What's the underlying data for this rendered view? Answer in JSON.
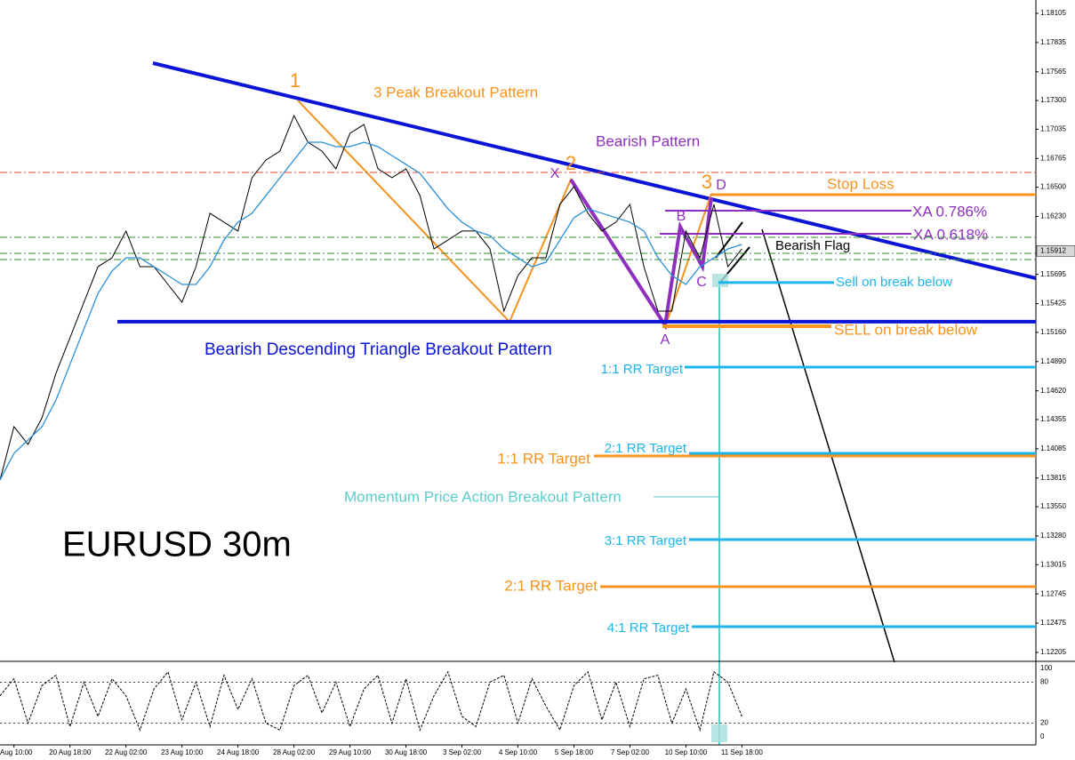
{
  "chart_data": [
    {
      "type": "line",
      "title": "EURUSD 30m",
      "ylim": [
        1.12139,
        1.18228
      ],
      "yticks": [
        1.18105,
        1.17835,
        1.17565,
        {
          "value": 1.173,
          "label": "1.17300"
        },
        1.17035,
        1.16765,
        {
          "value": 1.165,
          "label": "1.16500"
        },
        {
          "value": 1.1623,
          "label": "1.16230"
        },
        1.15695,
        1.15425,
        {
          "value": 1.1516,
          "label": "1.15160"
        },
        {
          "value": 1.1489,
          "label": "1.14890"
        },
        {
          "value": 1.1462,
          "label": "1.14620"
        },
        1.14355,
        1.14085,
        1.13815,
        {
          "value": 1.1355,
          "label": "1.13550"
        },
        {
          "value": 1.1328,
          "label": "1.13280"
        },
        1.13015,
        1.12745,
        1.12475,
        1.12205
      ],
      "xlim": [
        0,
        74
      ],
      "xticks": [
        {
          "value": 1,
          "label": "Aug 10:00"
        },
        {
          "value": 5,
          "label": "20 Aug 18:00"
        },
        {
          "value": 9,
          "label": "22 Aug 02:00"
        },
        {
          "value": 13,
          "label": "23 Aug 10:00"
        },
        {
          "value": 17,
          "label": "24 Aug 18:00"
        },
        {
          "value": 21,
          "label": "28 Aug 02:00"
        },
        {
          "value": 25,
          "label": "29 Aug 10:00"
        },
        {
          "value": 29,
          "label": "30 Aug 18:00"
        },
        {
          "value": 33,
          "label": "3 Sep 02:00"
        },
        {
          "value": 37,
          "label": "4 Sep 10:00"
        },
        {
          "value": 41,
          "label": "5 Sep 18:00"
        },
        {
          "value": 45,
          "label": "7 Sep 02:00"
        },
        {
          "value": 49,
          "label": "10 Sep 10:00"
        },
        {
          "value": 53,
          "label": "11 Sep 18:00"
        }
      ],
      "current_price": 1.15912,
      "series": [
        {
          "color": "#000000",
          "values": [
            1.13797,
            1.14289,
            1.14125,
            1.14371,
            1.14782,
            1.1511,
            1.15438,
            1.15766,
            1.15848,
            1.16095,
            1.15766,
            1.15766,
            1.15602,
            1.15438,
            1.15766,
            1.16259,
            1.16177,
            1.16095,
            1.16587,
            1.16751,
            1.16833,
            1.17161,
            1.16915,
            1.16833,
            1.16669,
            1.16997,
            1.17079,
            1.16669,
            1.16587,
            1.16669,
            1.16423,
            1.1593,
            1.16012,
            1.16095,
            1.16095,
            1.1593,
            1.15356,
            1.15684,
            1.15848,
            1.15848,
            1.16341,
            1.16505,
            1.16259,
            1.16095,
            1.16177,
            1.16341,
            1.15766,
            1.15356,
            1.15356,
            1.16095,
            1.15848,
            1.16341,
            1.15766,
            1.1593
          ]
        },
        {
          "color": "#2a8fd8",
          "values": [
            1.13797,
            1.14043,
            1.14166,
            1.14289,
            1.14535,
            1.14864,
            1.15192,
            1.1552,
            1.15725,
            1.15848,
            1.15848,
            1.15766,
            1.15684,
            1.15602,
            1.15602,
            1.15766,
            1.16012,
            1.16177,
            1.16259,
            1.16423,
            1.16587,
            1.16751,
            1.16915,
            1.16915,
            1.16874,
            1.16874,
            1.16915,
            1.16874,
            1.16792,
            1.1671,
            1.16628,
            1.16464,
            1.163,
            1.16177,
            1.16095,
            1.16053,
            1.1593,
            1.15848,
            1.15766,
            1.15807,
            1.16012,
            1.16218,
            1.163,
            1.16259,
            1.16218,
            1.16177,
            1.16095,
            1.15848,
            1.15684,
            1.15602,
            1.15766,
            1.15848,
            1.1593,
            1.15971
          ]
        }
      ],
      "levels": [
        {
          "label": "Stop Loss",
          "value": 1.16431,
          "color": "#f7931e"
        },
        {
          "label": "XA 0.786%",
          "value": 1.16283,
          "color": "#8e2fc0"
        },
        {
          "label": "XA 0.618%",
          "value": 1.1607,
          "color": "#8e2fc0"
        },
        {
          "label": "Sell on break below",
          "value": 1.15619,
          "color": "#1fb5ea"
        },
        {
          "label": "SELL on break below",
          "value": 1.15216,
          "color": "#f7931e"
        },
        {
          "label": "1:1 RR Target",
          "value": 1.14839,
          "color": "#1fb5ea"
        },
        {
          "label": "2:1 RR Target",
          "value": 1.14043,
          "color": "#1fb5ea"
        },
        {
          "label": "1:1 RR Target",
          "value": 1.14018,
          "color": "#f7931e"
        },
        {
          "label": "3:1 RR Target",
          "value": 1.13247,
          "color": "#1fb5ea"
        },
        {
          "label": "2:1 RR Target",
          "value": 1.12812,
          "color": "#f7931e"
        },
        {
          "label": "4:1 RR Target",
          "value": 1.12443,
          "color": "#1fb5ea"
        },
        {
          "value": 1.16636,
          "color": "#e0442a"
        },
        {
          "value": 1.16037,
          "color": "#2e8b2e"
        },
        {
          "value": 1.15889,
          "color": "#2e8b2e"
        },
        {
          "value": 1.15832,
          "color": "#2e8b2e"
        },
        {
          "label": "Bearish Descending Triangle Breakout Pattern",
          "value": 1.15258,
          "color": "#0a14d6"
        }
      ],
      "annotations": [
        {
          "text": "3 Peak Breakout Pattern",
          "color": "#f7931e"
        },
        {
          "text": "Bearish Pattern",
          "color": "#8e2fc0"
        },
        {
          "text": "Momentum Price Action Breakout Pattern",
          "color": "#5ccccc"
        },
        {
          "text": "Bearish Flag",
          "color": "#000000"
        }
      ],
      "points": [
        {
          "text": "1",
          "color": "#f7931e"
        },
        {
          "text": "2",
          "color": "#f7931e"
        },
        {
          "text": "3",
          "color": "#f7931e"
        },
        {
          "text": "X",
          "color": "#8e2fc0"
        },
        {
          "text": "A",
          "color": "#8e2fc0"
        },
        {
          "text": "B",
          "color": "#8e2fc0"
        },
        {
          "text": "C",
          "color": "#8e2fc0"
        },
        {
          "text": "D",
          "color": "#8e2fc0"
        }
      ]
    },
    {
      "type": "line",
      "ylim": [
        0,
        100
      ],
      "yticks": [
        100,
        80,
        20,
        0
      ],
      "series": [
        {
          "color": "#000000",
          "values": [
            60,
            85,
            20,
            75,
            90,
            15,
            80,
            30,
            85,
            60,
            10,
            70,
            95,
            25,
            80,
            15,
            90,
            40,
            85,
            20,
            10,
            75,
            90,
            35,
            80,
            15,
            70,
            90,
            20,
            85,
            10,
            60,
            95,
            30,
            15,
            80,
            90,
            20,
            85,
            45,
            10,
            75,
            95,
            25,
            80,
            15,
            85,
            90,
            20,
            70,
            10,
            95,
            80,
            30
          ]
        }
      ]
    }
  ]
}
